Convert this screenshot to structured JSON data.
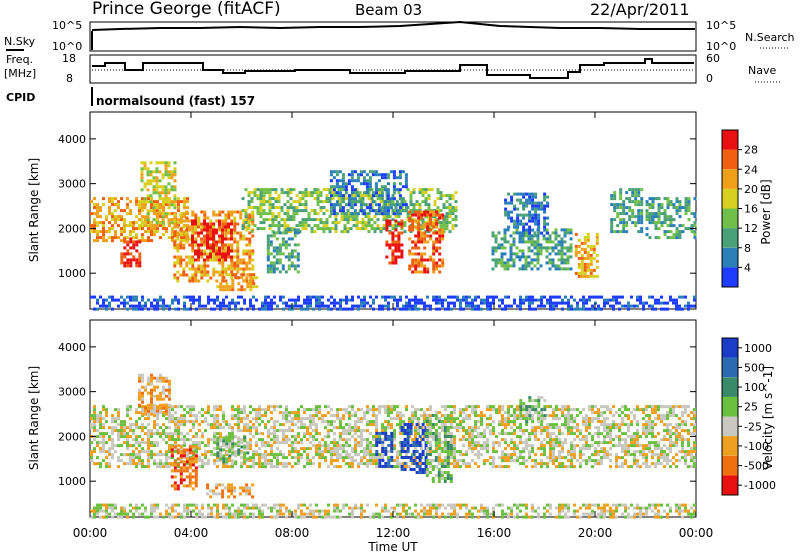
{
  "header": {
    "title_left": "Prince George (fitACF)",
    "title_mid": "Beam 03",
    "title_right": "22/Apr/2011"
  },
  "strip_labels": {
    "nsky": "N.Sky",
    "nsky_top": "10^5",
    "nsky_bot": "10^0",
    "nsearch": "N.Search",
    "nsearch_top": "10^5",
    "nsearch_bot": "10^0",
    "freq_line1": "Freq.",
    "freq_line2": "[MHz]",
    "freq_top": "18",
    "freq_bot": "8",
    "nave": "Nave",
    "nave_top": "60",
    "nave_bot": "0",
    "cpid": "CPID",
    "cpid_value": "normalsound (fast) 157"
  },
  "chart_data": [
    {
      "type": "heatmap",
      "name": "power-panel",
      "ylabel": "Slant Range [km]",
      "yticks": [
        "1000",
        "2000",
        "3000",
        "4000"
      ],
      "ylim": [
        200,
        4600
      ],
      "xlim": [
        0,
        24
      ],
      "colorbar_label": "Power [dB]",
      "colorbar_ticks": [
        "4",
        "8",
        "12",
        "16",
        "20",
        "24",
        "28"
      ],
      "colors": [
        "#1e3cff",
        "#2b7fb8",
        "#4aa078",
        "#6fbf4a",
        "#d8d020",
        "#f0a018",
        "#f06010",
        "#e81010"
      ],
      "regions": [
        {
          "t0": 0.0,
          "t1": 3.9,
          "r0": 1700,
          "r1": 2700,
          "level": 5
        },
        {
          "t0": 1.2,
          "t1": 2.0,
          "r0": 1150,
          "r1": 1800,
          "level": 7
        },
        {
          "t0": 2.0,
          "t1": 3.4,
          "r0": 2100,
          "r1": 3500,
          "level": 4
        },
        {
          "t0": 3.3,
          "t1": 6.5,
          "r0": 800,
          "r1": 2400,
          "level": 5
        },
        {
          "t0": 4.0,
          "t1": 5.6,
          "r0": 1300,
          "r1": 2200,
          "level": 7
        },
        {
          "t0": 5.0,
          "t1": 6.6,
          "r0": 650,
          "r1": 1000,
          "level": 5
        },
        {
          "t0": 6.0,
          "t1": 14.5,
          "r0": 1900,
          "r1": 2900,
          "level": 3
        },
        {
          "t0": 7.0,
          "t1": 8.2,
          "r0": 1000,
          "r1": 2000,
          "level": 2
        },
        {
          "t0": 9.5,
          "t1": 12.5,
          "r0": 2300,
          "r1": 3300,
          "level": 1
        },
        {
          "t0": 11.7,
          "t1": 12.3,
          "r0": 1200,
          "r1": 2200,
          "level": 7
        },
        {
          "t0": 12.6,
          "t1": 14.0,
          "r0": 1000,
          "r1": 2400,
          "level": 6
        },
        {
          "t0": 15.9,
          "t1": 19.1,
          "r0": 1100,
          "r1": 2000,
          "level": 2
        },
        {
          "t0": 16.4,
          "t1": 18.1,
          "r0": 1900,
          "r1": 2800,
          "level": 1
        },
        {
          "t0": 19.2,
          "t1": 20.1,
          "r0": 950,
          "r1": 1900,
          "level": 5
        },
        {
          "t0": 20.6,
          "t1": 21.8,
          "r0": 1900,
          "r1": 2900,
          "level": 2
        },
        {
          "t0": 22.0,
          "t1": 24.0,
          "r0": 1800,
          "r1": 2700,
          "level": 2
        },
        {
          "t0": 0.0,
          "t1": 24.0,
          "r0": 200,
          "r1": 500,
          "level": 0
        }
      ]
    },
    {
      "type": "heatmap",
      "name": "velocity-panel",
      "ylabel": "Slant Range [km]",
      "yticks": [
        "1000",
        "2000",
        "3000",
        "4000"
      ],
      "ylim": [
        200,
        4600
      ],
      "xlim": [
        0,
        24
      ],
      "colorbar_label": "Velocity [m s^-1]",
      "colorbar_ticks": [
        "1000",
        "500",
        "100",
        "25",
        "-25",
        "-100",
        "-500",
        "-1000"
      ],
      "colors": [
        "#1a3cc8",
        "#2a6ab0",
        "#3a8a6a",
        "#6cc040",
        "#c8c8c0",
        "#f0a020",
        "#f07010",
        "#e81010"
      ],
      "regions": [
        {
          "t0": 0.0,
          "t1": 24.0,
          "r0": 1300,
          "r1": 2700,
          "level": 4
        },
        {
          "t0": 1.9,
          "t1": 3.1,
          "r0": 2500,
          "r1": 3400,
          "level": 5
        },
        {
          "t0": 3.2,
          "t1": 4.2,
          "r0": 800,
          "r1": 1800,
          "level": 6
        },
        {
          "t0": 4.6,
          "t1": 6.5,
          "r0": 650,
          "r1": 950,
          "level": 5
        },
        {
          "t0": 5.0,
          "t1": 6.2,
          "r0": 1400,
          "r1": 2000,
          "level": 3
        },
        {
          "t0": 11.3,
          "t1": 11.9,
          "r0": 1300,
          "r1": 2100,
          "level": 0
        },
        {
          "t0": 12.3,
          "t1": 13.3,
          "r0": 1200,
          "r1": 2300,
          "level": 0
        },
        {
          "t0": 13.3,
          "t1": 14.3,
          "r0": 1000,
          "r1": 2500,
          "level": 3
        },
        {
          "t0": 17.0,
          "t1": 18.0,
          "r0": 2300,
          "r1": 2900,
          "level": 3
        },
        {
          "t0": 0.0,
          "t1": 24.0,
          "r0": 200,
          "r1": 500,
          "level": 4
        }
      ]
    }
  ],
  "x_axis": {
    "ticks": [
      "00:00",
      "04:00",
      "08:00",
      "12:00",
      "16:00",
      "20:00",
      "00:00"
    ],
    "label": "Time UT"
  }
}
